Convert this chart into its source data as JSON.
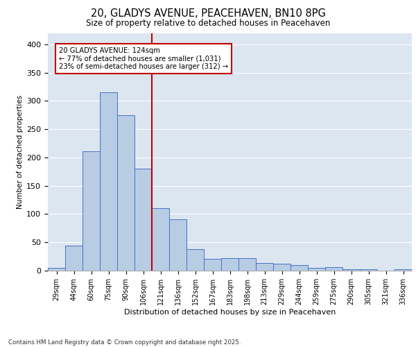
{
  "title_line1": "20, GLADYS AVENUE, PEACEHAVEN, BN10 8PG",
  "title_line2": "Size of property relative to detached houses in Peacehaven",
  "xlabel": "Distribution of detached houses by size in Peacehaven",
  "ylabel": "Number of detached properties",
  "categories": [
    "29sqm",
    "44sqm",
    "60sqm",
    "75sqm",
    "90sqm",
    "106sqm",
    "121sqm",
    "136sqm",
    "152sqm",
    "167sqm",
    "183sqm",
    "198sqm",
    "213sqm",
    "229sqm",
    "244sqm",
    "259sqm",
    "275sqm",
    "290sqm",
    "305sqm",
    "321sqm",
    "336sqm"
  ],
  "values": [
    5,
    44,
    211,
    315,
    275,
    180,
    110,
    91,
    38,
    21,
    22,
    22,
    13,
    12,
    10,
    5,
    6,
    3,
    2,
    0,
    3
  ],
  "bar_color": "#b8cce4",
  "bar_edge_color": "#4472c4",
  "vline_x_index": 6.0,
  "vline_color": "#c00000",
  "annotation_text": "20 GLADYS AVENUE: 124sqm\n← 77% of detached houses are smaller (1,031)\n23% of semi-detached houses are larger (312) →",
  "annotation_box_color": "#c00000",
  "background_color": "#dce6f1",
  "footer_line1": "Contains HM Land Registry data © Crown copyright and database right 2025.",
  "ylim": [
    0,
    420
  ],
  "yticks": [
    0,
    50,
    100,
    150,
    200,
    250,
    300,
    350,
    400
  ]
}
